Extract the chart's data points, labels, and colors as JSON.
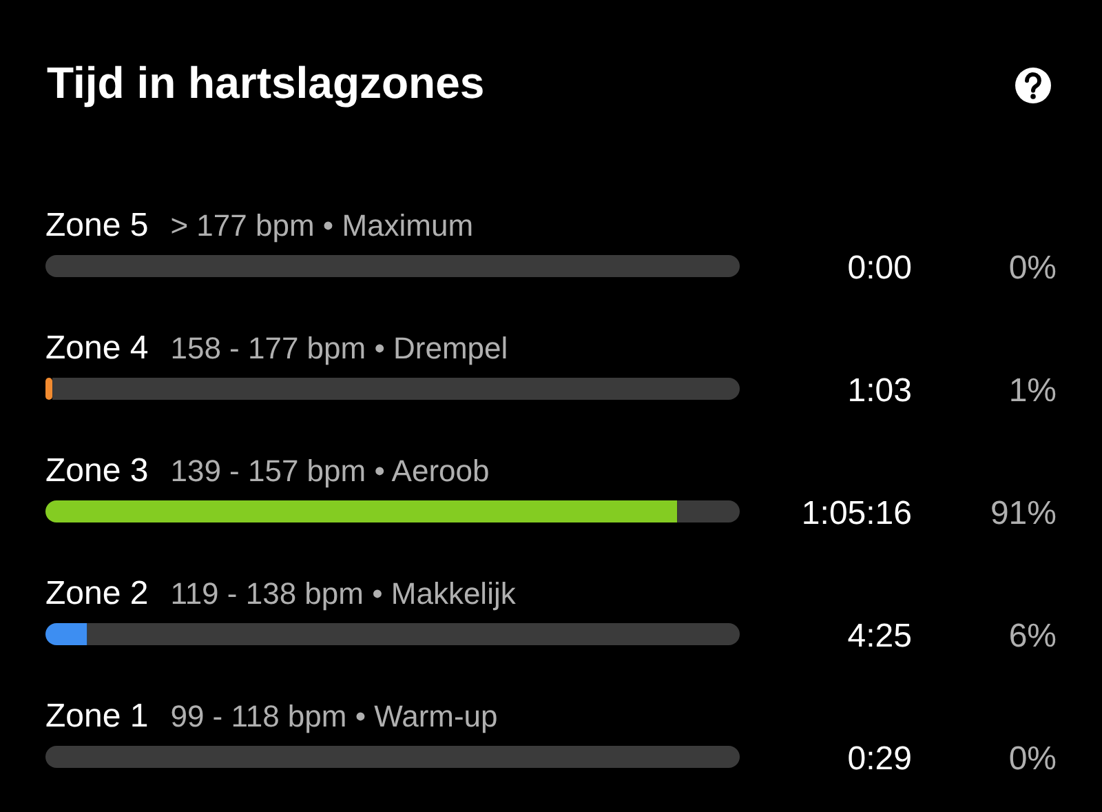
{
  "chart_data": {
    "type": "bar",
    "orientation": "horizontal",
    "stacked": true,
    "title": "Tijd in hartslagzones",
    "categories": [
      "Zone 5",
      "Zone 4",
      "Zone 3",
      "Zone 2",
      "Zone 1"
    ],
    "series": [
      {
        "colors": [
          "#555555",
          "#f28b30",
          "#84cc22",
          "#3d8ef2",
          "#d0d0d0"
        ],
        "values": [
          0,
          1,
          91,
          6,
          0
        ],
        "value_labels": [
          "0%",
          "1%",
          "91%",
          "6%",
          "0%"
        ]
      },
      {
        "color": "#3b3b3b",
        "values": [
          100,
          99,
          9,
          94,
          100
        ]
      }
    ],
    "tick_labels": "y",
    "annotations": [
      "> 177 bpm • Maximum",
      "0:00",
      "158 - 177 bpm • Drempel",
      "1:03",
      "139 - 157 bpm • Aeroob",
      "1:05:16",
      "119 - 138 bpm • Makkelijk",
      "4:25",
      "99 - 118 bpm • Warm-up",
      "0:29"
    ]
  }
}
